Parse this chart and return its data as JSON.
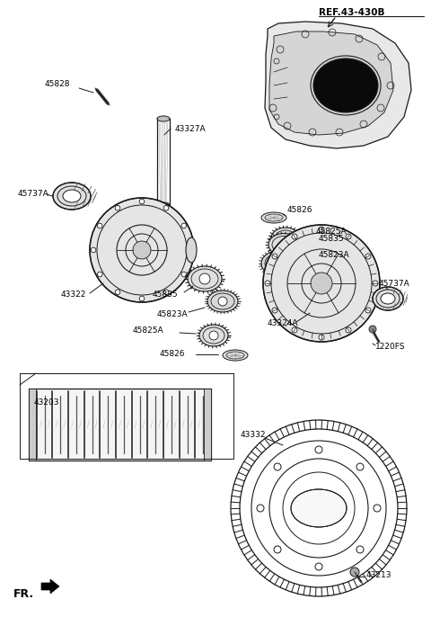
{
  "bg_color": "#ffffff",
  "line_color": "#1a1a1a",
  "labels": {
    "REF_43_430B": "REF.43-430B",
    "45828": "45828",
    "43327A": "43327A",
    "45737A_left": "45737A",
    "43322": "43322",
    "45835_left": "45835",
    "45823A_left": "45823A",
    "45826_top": "45826",
    "45825A_top": "45825A",
    "45823A_right": "45823A",
    "45835_right": "45835",
    "45737A_right": "45737A",
    "43324A": "43324A",
    "1220FS": "1220FS",
    "43203": "43203",
    "45825A_bottom": "45825A",
    "45826_bottom": "45826",
    "43332": "43332",
    "43213": "43213",
    "FR": "FR."
  },
  "figsize": [
    4.8,
    6.86
  ],
  "dpi": 100
}
